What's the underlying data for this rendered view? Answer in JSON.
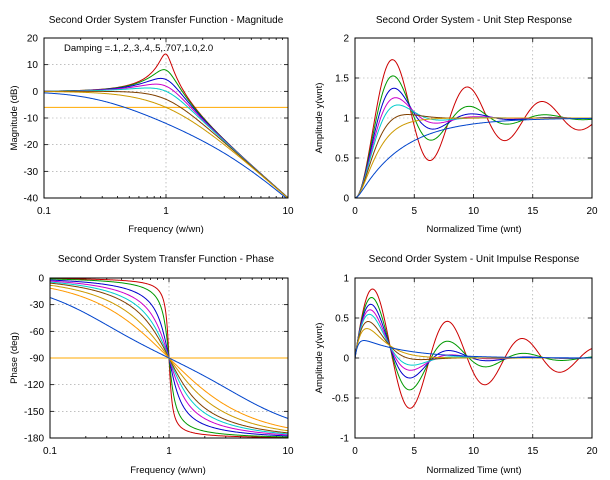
{
  "colors": {
    "damping": [
      "#cc0000",
      "#009900",
      "#0000cc",
      "#cc00cc",
      "#00cccc",
      "#804000",
      "#cc9900",
      "#ff9900",
      "#0044cc"
    ]
  },
  "chart_data": [
    {
      "id": "magnitude",
      "type": "line",
      "title": "Second Order System Transfer Function - Magnitude",
      "xlabel": "Frequency (w/wn)",
      "ylabel": "Magnitude (dB)",
      "xscale": "log",
      "xlim": [
        0.1,
        10
      ],
      "ylim": [
        -40,
        20
      ],
      "xticks": [
        0.1,
        1,
        10
      ],
      "xtick_labels": [
        "0.1",
        "1",
        "10"
      ],
      "yticks": [
        -40,
        -30,
        -20,
        -10,
        0,
        10,
        20
      ],
      "ytick_labels": [
        "-40",
        "-30",
        "-20",
        "-10",
        "0",
        "10",
        "20"
      ],
      "grid": true,
      "annotation": "Damping =.1,.2,.3,.4,.5,.707,1.0,2.0",
      "damping": [
        0.1,
        0.2,
        0.3,
        0.4,
        0.5,
        0.707,
        1.0,
        2.0
      ],
      "reference_line": -6.0206
    },
    {
      "id": "step",
      "type": "line",
      "title": "Second Order System - Unit Step Response",
      "xlabel": "Normalized Time (wnt)",
      "ylabel": "Amplitude y(wnt)",
      "xscale": "linear",
      "xlim": [
        0,
        20
      ],
      "ylim": [
        0,
        2
      ],
      "xticks": [
        0,
        5,
        10,
        15,
        20
      ],
      "xtick_labels": [
        "0",
        "5",
        "10",
        "15",
        "20"
      ],
      "yticks": [
        0,
        0.5,
        1,
        1.5,
        2
      ],
      "ytick_labels": [
        "0",
        "0.5",
        "1",
        "1.5",
        "2"
      ],
      "grid": true,
      "damping": [
        0.1,
        0.2,
        0.3,
        0.4,
        0.5,
        0.707,
        1.0,
        2.0
      ]
    },
    {
      "id": "phase",
      "type": "line",
      "title": "Second Order System Transfer Function - Phase",
      "xlabel": "Frequency (w/wn)",
      "ylabel": "Phase (deg)",
      "xscale": "log",
      "xlim": [
        0.1,
        10
      ],
      "ylim": [
        -180,
        0
      ],
      "xticks": [
        0.1,
        1,
        10
      ],
      "xtick_labels": [
        "0.1",
        "1",
        "10"
      ],
      "yticks": [
        -180,
        -150,
        -120,
        -90,
        -60,
        -30,
        0
      ],
      "ytick_labels": [
        "-180",
        "-150",
        "-120",
        "-90",
        "-60",
        "-30",
        "0"
      ],
      "grid": true,
      "damping": [
        0.05,
        0.1,
        0.2,
        0.3,
        0.4,
        0.5,
        0.707,
        1.0,
        2.0
      ],
      "reference_line": -90
    },
    {
      "id": "impulse",
      "type": "line",
      "title": "Second Order System - Unit Impulse Response",
      "xlabel": "Normalized Time (wnt)",
      "ylabel": "Amplitude y(wnt)",
      "xscale": "linear",
      "xlim": [
        0,
        20
      ],
      "ylim": [
        -1,
        1
      ],
      "xticks": [
        0,
        5,
        10,
        15,
        20
      ],
      "xtick_labels": [
        "0",
        "5",
        "10",
        "15",
        "20"
      ],
      "yticks": [
        -1,
        -0.5,
        0,
        0.5,
        1
      ],
      "ytick_labels": [
        "-1",
        "-0.5",
        "0",
        "0.5",
        "1"
      ],
      "grid": true,
      "damping": [
        0.1,
        0.2,
        0.3,
        0.4,
        0.5,
        0.707,
        1.0,
        2.0
      ]
    }
  ]
}
